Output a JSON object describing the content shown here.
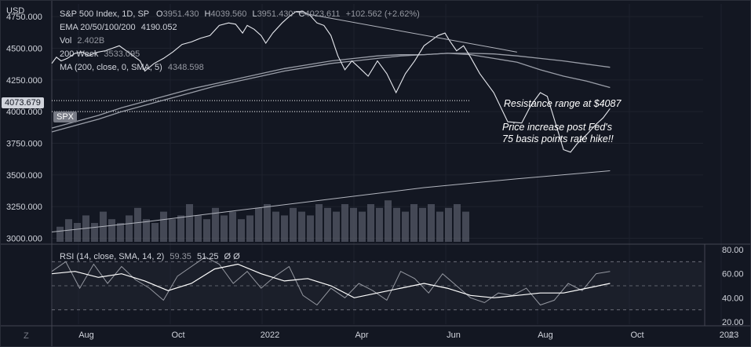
{
  "price_axis_label": "USD",
  "legend": {
    "symbol": "S&P 500 Index, 1D, SP",
    "o_label": "O",
    "o": "3951.430",
    "h_label": "H",
    "h": "4039.560",
    "l_label": "L",
    "l": "3951.430",
    "c_label": "C",
    "c": "4023.611",
    "change": "+102.562 (+2.62%)",
    "ema_label": "EMA 20/50/100/200",
    "ema_value": "4190.052",
    "vol_label": "Vol",
    "vol_value": "2.402B",
    "week_label": "200 Week",
    "week_value": "3533.095",
    "ma_label": "MA (200, close, 0, SMA, 5)",
    "ma_value": "4348.598",
    "rsi_label": "RSI (14, close, SMA, 14, 2)",
    "rsi_values": "59.35",
    "rsi_value": "51.25",
    "rsi_extra": "Ø  Ø"
  },
  "price_tag": "4073.679",
  "symbol_tag": "SPX",
  "annotations": {
    "resistance": "Resistance range at $4087",
    "fed_line1": "Price increase post Fed's",
    "fed_line2": "75 basis points rate hike!!"
  },
  "corner_left": "Z",
  "corner_right": "A",
  "colors": {
    "background": "#131722",
    "price_line": "#e6e8ee",
    "ma_line": "#9a9ea8",
    "volume": "#5a5e6b",
    "rsi_line": "#9598a1",
    "rsi_ma": "#ffffff",
    "tag_price": "#d1d4dc",
    "tag_symbol": "#787b86"
  },
  "chart_data": {
    "type": "line",
    "title": "S&P 500 Index, 1D, SP",
    "x_ticks": [
      "Aug",
      "Oct",
      "2022",
      "Apr",
      "Jun",
      "Aug",
      "Oct",
      "2023"
    ],
    "price_axis": {
      "ticks": [
        3000,
        3250,
        3500,
        3750,
        4000,
        4250,
        4500,
        4750
      ],
      "tick_labels": [
        "3000.000",
        "3250.000",
        "3500.000",
        "3750.000",
        "4000.000",
        "4250.000",
        "4500.000",
        "4750.000"
      ],
      "ylim": [
        2960,
        4850
      ]
    },
    "price_series": {
      "name": "S&P 500",
      "x": [
        0,
        0.1,
        0.2,
        0.33,
        0.5,
        0.66,
        0.8,
        0.9,
        1.0,
        1.15,
        1.3,
        1.45,
        1.6,
        1.75,
        1.9,
        2.0,
        2.2,
        2.4,
        2.6,
        2.8,
        3.0,
        3.2,
        3.4,
        3.6,
        3.8,
        3.95,
        4.1,
        4.2,
        4.35,
        4.5,
        4.6,
        4.75,
        4.95,
        5.1,
        5.25,
        5.4,
        5.55,
        5.7,
        5.85,
        6.0,
        6.15,
        6.3,
        6.45,
        6.6,
        6.8,
        7.0,
        7.2,
        7.4,
        7.6,
        7.8,
        8.0,
        8.15,
        8.3,
        8.45,
        8.55,
        8.7,
        8.85,
        9.0,
        9.2,
        9.5,
        9.8,
        10.1,
        10.3,
        10.5,
        10.65,
        10.85,
        11.0,
        11.15,
        11.3,
        11.5,
        11.7,
        11.85,
        12.0
      ],
      "y": [
        4380,
        4430,
        4400,
        4420,
        4460,
        4470,
        4440,
        4460,
        4470,
        4480,
        4500,
        4520,
        4480,
        4440,
        4400,
        4320,
        4380,
        4420,
        4470,
        4530,
        4550,
        4580,
        4600,
        4680,
        4700,
        4690,
        4620,
        4680,
        4650,
        4600,
        4540,
        4620,
        4700,
        4750,
        4790,
        4790,
        4760,
        4700,
        4680,
        4600,
        4440,
        4330,
        4400,
        4350,
        4280,
        4400,
        4300,
        4150,
        4300,
        4400,
        4520,
        4560,
        4600,
        4620,
        4560,
        4480,
        4520,
        4430,
        4300,
        4150,
        3920,
        3910,
        4050,
        4150,
        4120,
        3880,
        3700,
        3680,
        3750,
        3820,
        3900,
        3950,
        4024
      ]
    },
    "ema_series": {
      "name": "EMA 20/50/100/200",
      "x": [
        0,
        0.5,
        1.0,
        1.5,
        2.0,
        2.5,
        3.0,
        3.5,
        4.0,
        4.5,
        5.0,
        5.5,
        6.0,
        6.5,
        7.0,
        7.5,
        8.0,
        8.5,
        9.0,
        9.5,
        10.0,
        10.5,
        11.0,
        11.5,
        12.0
      ],
      "y": [
        3870,
        3920,
        3970,
        4030,
        4080,
        4130,
        4180,
        4220,
        4260,
        4300,
        4340,
        4370,
        4400,
        4420,
        4440,
        4450,
        4450,
        4460,
        4450,
        4420,
        4390,
        4330,
        4280,
        4240,
        4190
      ]
    },
    "ma_series": {
      "name": "MA (200, close, 0, SMA, 5)",
      "x": [
        0,
        0.5,
        1.0,
        1.5,
        2.0,
        2.5,
        3.0,
        3.5,
        4.0,
        4.5,
        5.0,
        5.5,
        6.0,
        6.5,
        7.0,
        7.5,
        8.0,
        8.5,
        9.0,
        9.5,
        10.0,
        10.5,
        11.0,
        11.5,
        12.0
      ],
      "y": [
        3840,
        3890,
        3940,
        4000,
        4050,
        4100,
        4150,
        4200,
        4240,
        4280,
        4320,
        4350,
        4380,
        4400,
        4420,
        4440,
        4450,
        4460,
        4460,
        4455,
        4440,
        4420,
        4400,
        4375,
        4350
      ]
    },
    "week200_series": {
      "name": "200 Week",
      "x": [
        0,
        2,
        4,
        6,
        8,
        10,
        12
      ],
      "y": [
        3050,
        3130,
        3220,
        3310,
        3400,
        3470,
        3533
      ]
    },
    "trendline": {
      "x": [
        5.2,
        10.0
      ],
      "y": [
        4790,
        4470
      ]
    },
    "resistance_level": 4087,
    "support_line_level": 4000,
    "volume_values": [
      0.4,
      0.6,
      0.5,
      0.7,
      0.5,
      0.8,
      0.6,
      0.5,
      0.7,
      0.9,
      0.6,
      0.5,
      0.8,
      0.6,
      0.7,
      1.0,
      0.7,
      0.6,
      0.9,
      0.7,
      0.8,
      0.6,
      0.7,
      0.9,
      1.0,
      0.8,
      0.7,
      0.9,
      0.8,
      0.7,
      1.0,
      0.9,
      0.8,
      1.0,
      0.9,
      0.8,
      1.0,
      0.9,
      1.1,
      0.9,
      0.8,
      1.0,
      0.9,
      1.0,
      0.8,
      0.9,
      1.0,
      0.8
    ],
    "rsi_axis": {
      "ticks": [
        20,
        40,
        60,
        80
      ],
      "tick_labels": [
        "20.00",
        "40.00",
        "60.00",
        "80.00"
      ],
      "ylim": [
        18,
        84
      ],
      "bands": [
        30,
        50,
        70
      ]
    },
    "rsi_series": {
      "name": "RSI (14, close, SMA, 14, 2)",
      "x": [
        0,
        0.3,
        0.6,
        0.9,
        1.2,
        1.5,
        1.8,
        2.1,
        2.4,
        2.7,
        3.0,
        3.3,
        3.6,
        3.9,
        4.2,
        4.5,
        4.8,
        5.1,
        5.4,
        5.7,
        6.0,
        6.3,
        6.6,
        6.9,
        7.2,
        7.5,
        7.8,
        8.1,
        8.4,
        8.7,
        9.0,
        9.3,
        9.6,
        9.9,
        10.2,
        10.5,
        10.8,
        11.1,
        11.4,
        11.7,
        12.0
      ],
      "y": [
        62,
        70,
        48,
        68,
        52,
        66,
        55,
        48,
        38,
        58,
        66,
        74,
        68,
        52,
        62,
        48,
        58,
        66,
        42,
        34,
        48,
        40,
        52,
        46,
        38,
        62,
        56,
        44,
        60,
        50,
        40,
        36,
        44,
        42,
        48,
        34,
        38,
        52,
        46,
        60,
        62
      ]
    },
    "rsi_ma_series": {
      "name": "RSI MA",
      "x": [
        0,
        0.5,
        1.0,
        1.5,
        2.0,
        2.5,
        3.0,
        3.5,
        4.0,
        4.5,
        5.0,
        5.5,
        6.0,
        6.5,
        7.0,
        7.5,
        8.0,
        8.5,
        9.0,
        9.5,
        10.0,
        10.5,
        11.0,
        11.5,
        12.0
      ],
      "y": [
        60,
        62,
        57,
        60,
        54,
        46,
        52,
        64,
        68,
        60,
        54,
        56,
        50,
        40,
        44,
        48,
        52,
        48,
        42,
        40,
        42,
        44,
        44,
        48,
        52
      ]
    }
  }
}
